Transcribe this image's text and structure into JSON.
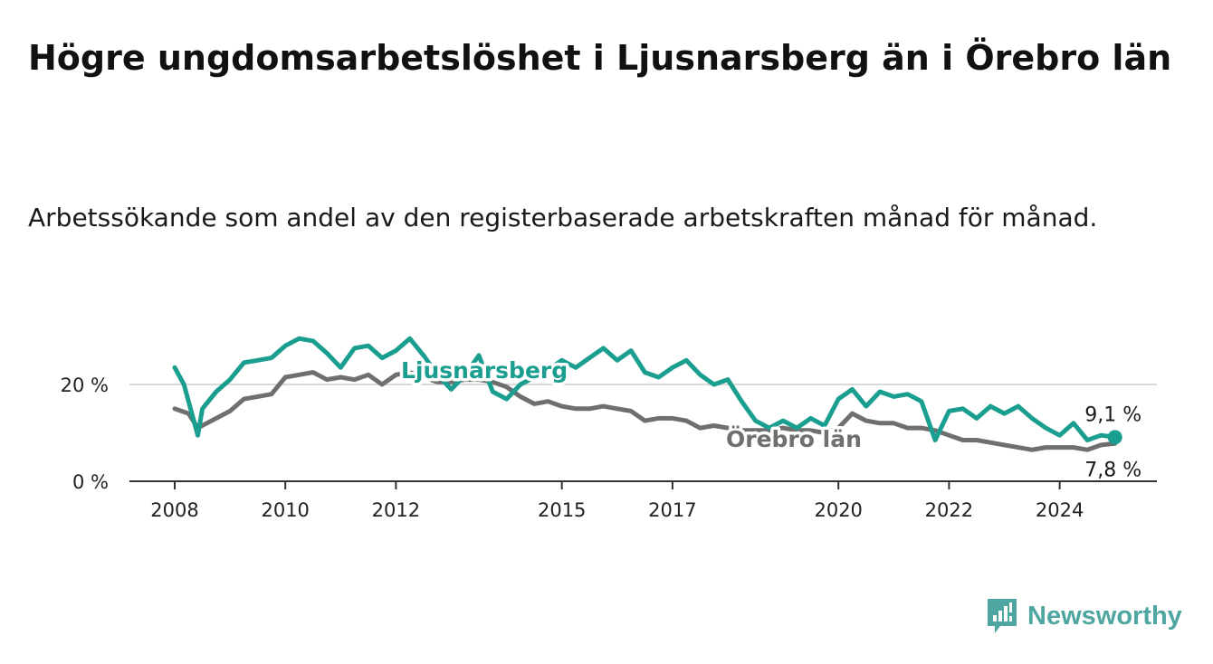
{
  "title": "Högre ungdomsarbetslöshet i Ljusnarsberg än i Örebro län",
  "subtitle": "Arbetssökande som andel av den registerbaserade arbetskraften månad för månad.",
  "brand": {
    "name": "Newsworthy",
    "icon": "newsworthy-logo-icon"
  },
  "colors": {
    "ljusnarsberg": "#1a9e8f",
    "orebro": "#6f6f70",
    "grid": "#d9d9d9",
    "axis": "#333333"
  },
  "chart_data": {
    "type": "line",
    "x_ticks": [
      "2008",
      "2010",
      "2012",
      "2015",
      "2017",
      "2020",
      "2022",
      "2024"
    ],
    "y_ticks": [
      "0 %",
      "20 %"
    ],
    "ylim": [
      0,
      30
    ],
    "grid": "horizontal",
    "series": [
      {
        "name": "Ljusnarsberg",
        "end_label": "9,1 %",
        "points": [
          [
            "2008-01",
            23.5
          ],
          [
            "2008-03",
            20.0
          ],
          [
            "2008-05",
            13.0
          ],
          [
            "2008-06",
            9.5
          ],
          [
            "2008-07",
            15.0
          ],
          [
            "2008-10",
            18.5
          ],
          [
            "2009-01",
            21.0
          ],
          [
            "2009-04",
            24.5
          ],
          [
            "2009-07",
            25.0
          ],
          [
            "2009-10",
            25.5
          ],
          [
            "2010-01",
            28.0
          ],
          [
            "2010-04",
            29.5
          ],
          [
            "2010-07",
            29.0
          ],
          [
            "2010-10",
            26.5
          ],
          [
            "2011-01",
            23.5
          ],
          [
            "2011-04",
            27.5
          ],
          [
            "2011-07",
            28.0
          ],
          [
            "2011-10",
            25.5
          ],
          [
            "2012-01",
            27.0
          ],
          [
            "2012-04",
            29.5
          ],
          [
            "2012-07",
            26.0
          ],
          [
            "2012-10",
            22.0
          ],
          [
            "2013-01",
            19.0
          ],
          [
            "2013-04",
            22.0
          ],
          [
            "2013-07",
            26.0
          ],
          [
            "2013-10",
            18.5
          ],
          [
            "2014-01",
            17.0
          ],
          [
            "2014-04",
            20.0
          ],
          [
            "2014-07",
            21.5
          ],
          [
            "2014-10",
            23.0
          ],
          [
            "2015-01",
            25.0
          ],
          [
            "2015-04",
            23.5
          ],
          [
            "2015-07",
            25.5
          ],
          [
            "2015-10",
            27.5
          ],
          [
            "2016-01",
            25.0
          ],
          [
            "2016-04",
            27.0
          ],
          [
            "2016-07",
            22.5
          ],
          [
            "2016-10",
            21.5
          ],
          [
            "2017-01",
            23.5
          ],
          [
            "2017-04",
            25.0
          ],
          [
            "2017-07",
            22.0
          ],
          [
            "2017-10",
            20.0
          ],
          [
            "2018-01",
            21.0
          ],
          [
            "2018-04",
            16.5
          ],
          [
            "2018-07",
            12.5
          ],
          [
            "2018-10",
            11.0
          ],
          [
            "2019-01",
            12.5
          ],
          [
            "2019-04",
            11.0
          ],
          [
            "2019-07",
            13.0
          ],
          [
            "2019-10",
            11.5
          ],
          [
            "2020-01",
            17.0
          ],
          [
            "2020-04",
            19.0
          ],
          [
            "2020-07",
            15.5
          ],
          [
            "2020-10",
            18.5
          ],
          [
            "2021-01",
            17.5
          ],
          [
            "2021-04",
            18.0
          ],
          [
            "2021-07",
            16.5
          ],
          [
            "2021-10",
            8.5
          ],
          [
            "2022-01",
            14.5
          ],
          [
            "2022-04",
            15.0
          ],
          [
            "2022-07",
            13.0
          ],
          [
            "2022-10",
            15.5
          ],
          [
            "2023-01",
            14.0
          ],
          [
            "2023-04",
            15.5
          ],
          [
            "2023-07",
            13.0
          ],
          [
            "2023-10",
            11.0
          ],
          [
            "2024-01",
            9.5
          ],
          [
            "2024-04",
            12.0
          ],
          [
            "2024-07",
            8.5
          ],
          [
            "2024-10",
            9.5
          ],
          [
            "2025-01",
            9.1
          ]
        ]
      },
      {
        "name": "Örebro län",
        "end_label": "7,8 %",
        "points": [
          [
            "2008-01",
            15.0
          ],
          [
            "2008-04",
            14.0
          ],
          [
            "2008-06",
            11.0
          ],
          [
            "2008-10",
            13.0
          ],
          [
            "2009-01",
            14.5
          ],
          [
            "2009-04",
            17.0
          ],
          [
            "2009-07",
            17.5
          ],
          [
            "2009-10",
            18.0
          ],
          [
            "2010-01",
            21.5
          ],
          [
            "2010-04",
            22.0
          ],
          [
            "2010-07",
            22.5
          ],
          [
            "2010-10",
            21.0
          ],
          [
            "2011-01",
            21.5
          ],
          [
            "2011-04",
            21.0
          ],
          [
            "2011-07",
            22.0
          ],
          [
            "2011-10",
            20.0
          ],
          [
            "2012-01",
            22.0
          ],
          [
            "2012-04",
            22.5
          ],
          [
            "2012-07",
            21.5
          ],
          [
            "2012-10",
            20.5
          ],
          [
            "2013-01",
            20.5
          ],
          [
            "2013-04",
            21.0
          ],
          [
            "2013-07",
            21.0
          ],
          [
            "2013-10",
            20.5
          ],
          [
            "2014-01",
            19.5
          ],
          [
            "2014-04",
            17.5
          ],
          [
            "2014-07",
            16.0
          ],
          [
            "2014-10",
            16.5
          ],
          [
            "2015-01",
            15.5
          ],
          [
            "2015-04",
            15.0
          ],
          [
            "2015-07",
            15.0
          ],
          [
            "2015-10",
            15.5
          ],
          [
            "2016-01",
            15.0
          ],
          [
            "2016-04",
            14.5
          ],
          [
            "2016-07",
            12.5
          ],
          [
            "2016-10",
            13.0
          ],
          [
            "2017-01",
            13.0
          ],
          [
            "2017-04",
            12.5
          ],
          [
            "2017-07",
            11.0
          ],
          [
            "2017-10",
            11.5
          ],
          [
            "2018-01",
            11.0
          ],
          [
            "2018-04",
            10.5
          ],
          [
            "2018-07",
            10.5
          ],
          [
            "2018-10",
            10.5
          ],
          [
            "2019-01",
            11.0
          ],
          [
            "2019-04",
            10.5
          ],
          [
            "2019-07",
            10.5
          ],
          [
            "2019-10",
            10.0
          ],
          [
            "2020-01",
            11.0
          ],
          [
            "2020-04",
            14.0
          ],
          [
            "2020-07",
            12.5
          ],
          [
            "2020-10",
            12.0
          ],
          [
            "2021-01",
            12.0
          ],
          [
            "2021-04",
            11.0
          ],
          [
            "2021-07",
            11.0
          ],
          [
            "2021-10",
            10.5
          ],
          [
            "2022-01",
            9.5
          ],
          [
            "2022-04",
            8.5
          ],
          [
            "2022-07",
            8.5
          ],
          [
            "2022-10",
            8.0
          ],
          [
            "2023-01",
            7.5
          ],
          [
            "2023-04",
            7.0
          ],
          [
            "2023-07",
            6.5
          ],
          [
            "2023-10",
            7.0
          ],
          [
            "2024-01",
            7.0
          ],
          [
            "2024-04",
            7.0
          ],
          [
            "2024-07",
            6.5
          ],
          [
            "2024-10",
            7.5
          ],
          [
            "2025-01",
            7.8
          ]
        ]
      }
    ]
  }
}
